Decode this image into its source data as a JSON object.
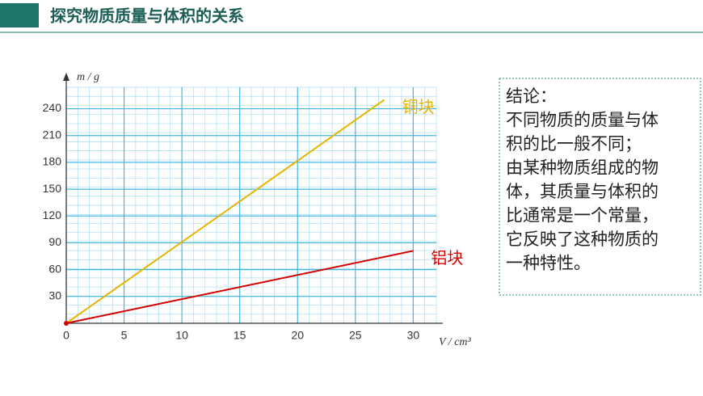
{
  "header": {
    "title": "探究物质质量与体积的关系"
  },
  "chart_data": {
    "type": "line",
    "x_label": "V / cm³",
    "y_label": "m / g",
    "xlim": [
      0,
      32
    ],
    "ylim": [
      0,
      264
    ],
    "xticks": [
      0,
      5,
      10,
      15,
      20,
      25,
      30
    ],
    "yticks": [
      30,
      60,
      90,
      120,
      150,
      180,
      210,
      240
    ],
    "grid": true,
    "series": [
      {
        "name": "铜块",
        "color": "#e8b400",
        "x": [
          0,
          27.5
        ],
        "values": [
          0,
          250
        ]
      },
      {
        "name": "铝块",
        "color": "#d40000",
        "x": [
          0,
          30
        ],
        "values": [
          0,
          81
        ]
      }
    ]
  },
  "conclusion": {
    "lines": [
      "结论：",
      "不同物质的质量与体",
      "积的比一般不同；",
      "由某种物质组成的物",
      "体，其质量与体积的",
      "比通常是一个常量，",
      "它反映了这种物质的",
      "一种特性。"
    ]
  }
}
